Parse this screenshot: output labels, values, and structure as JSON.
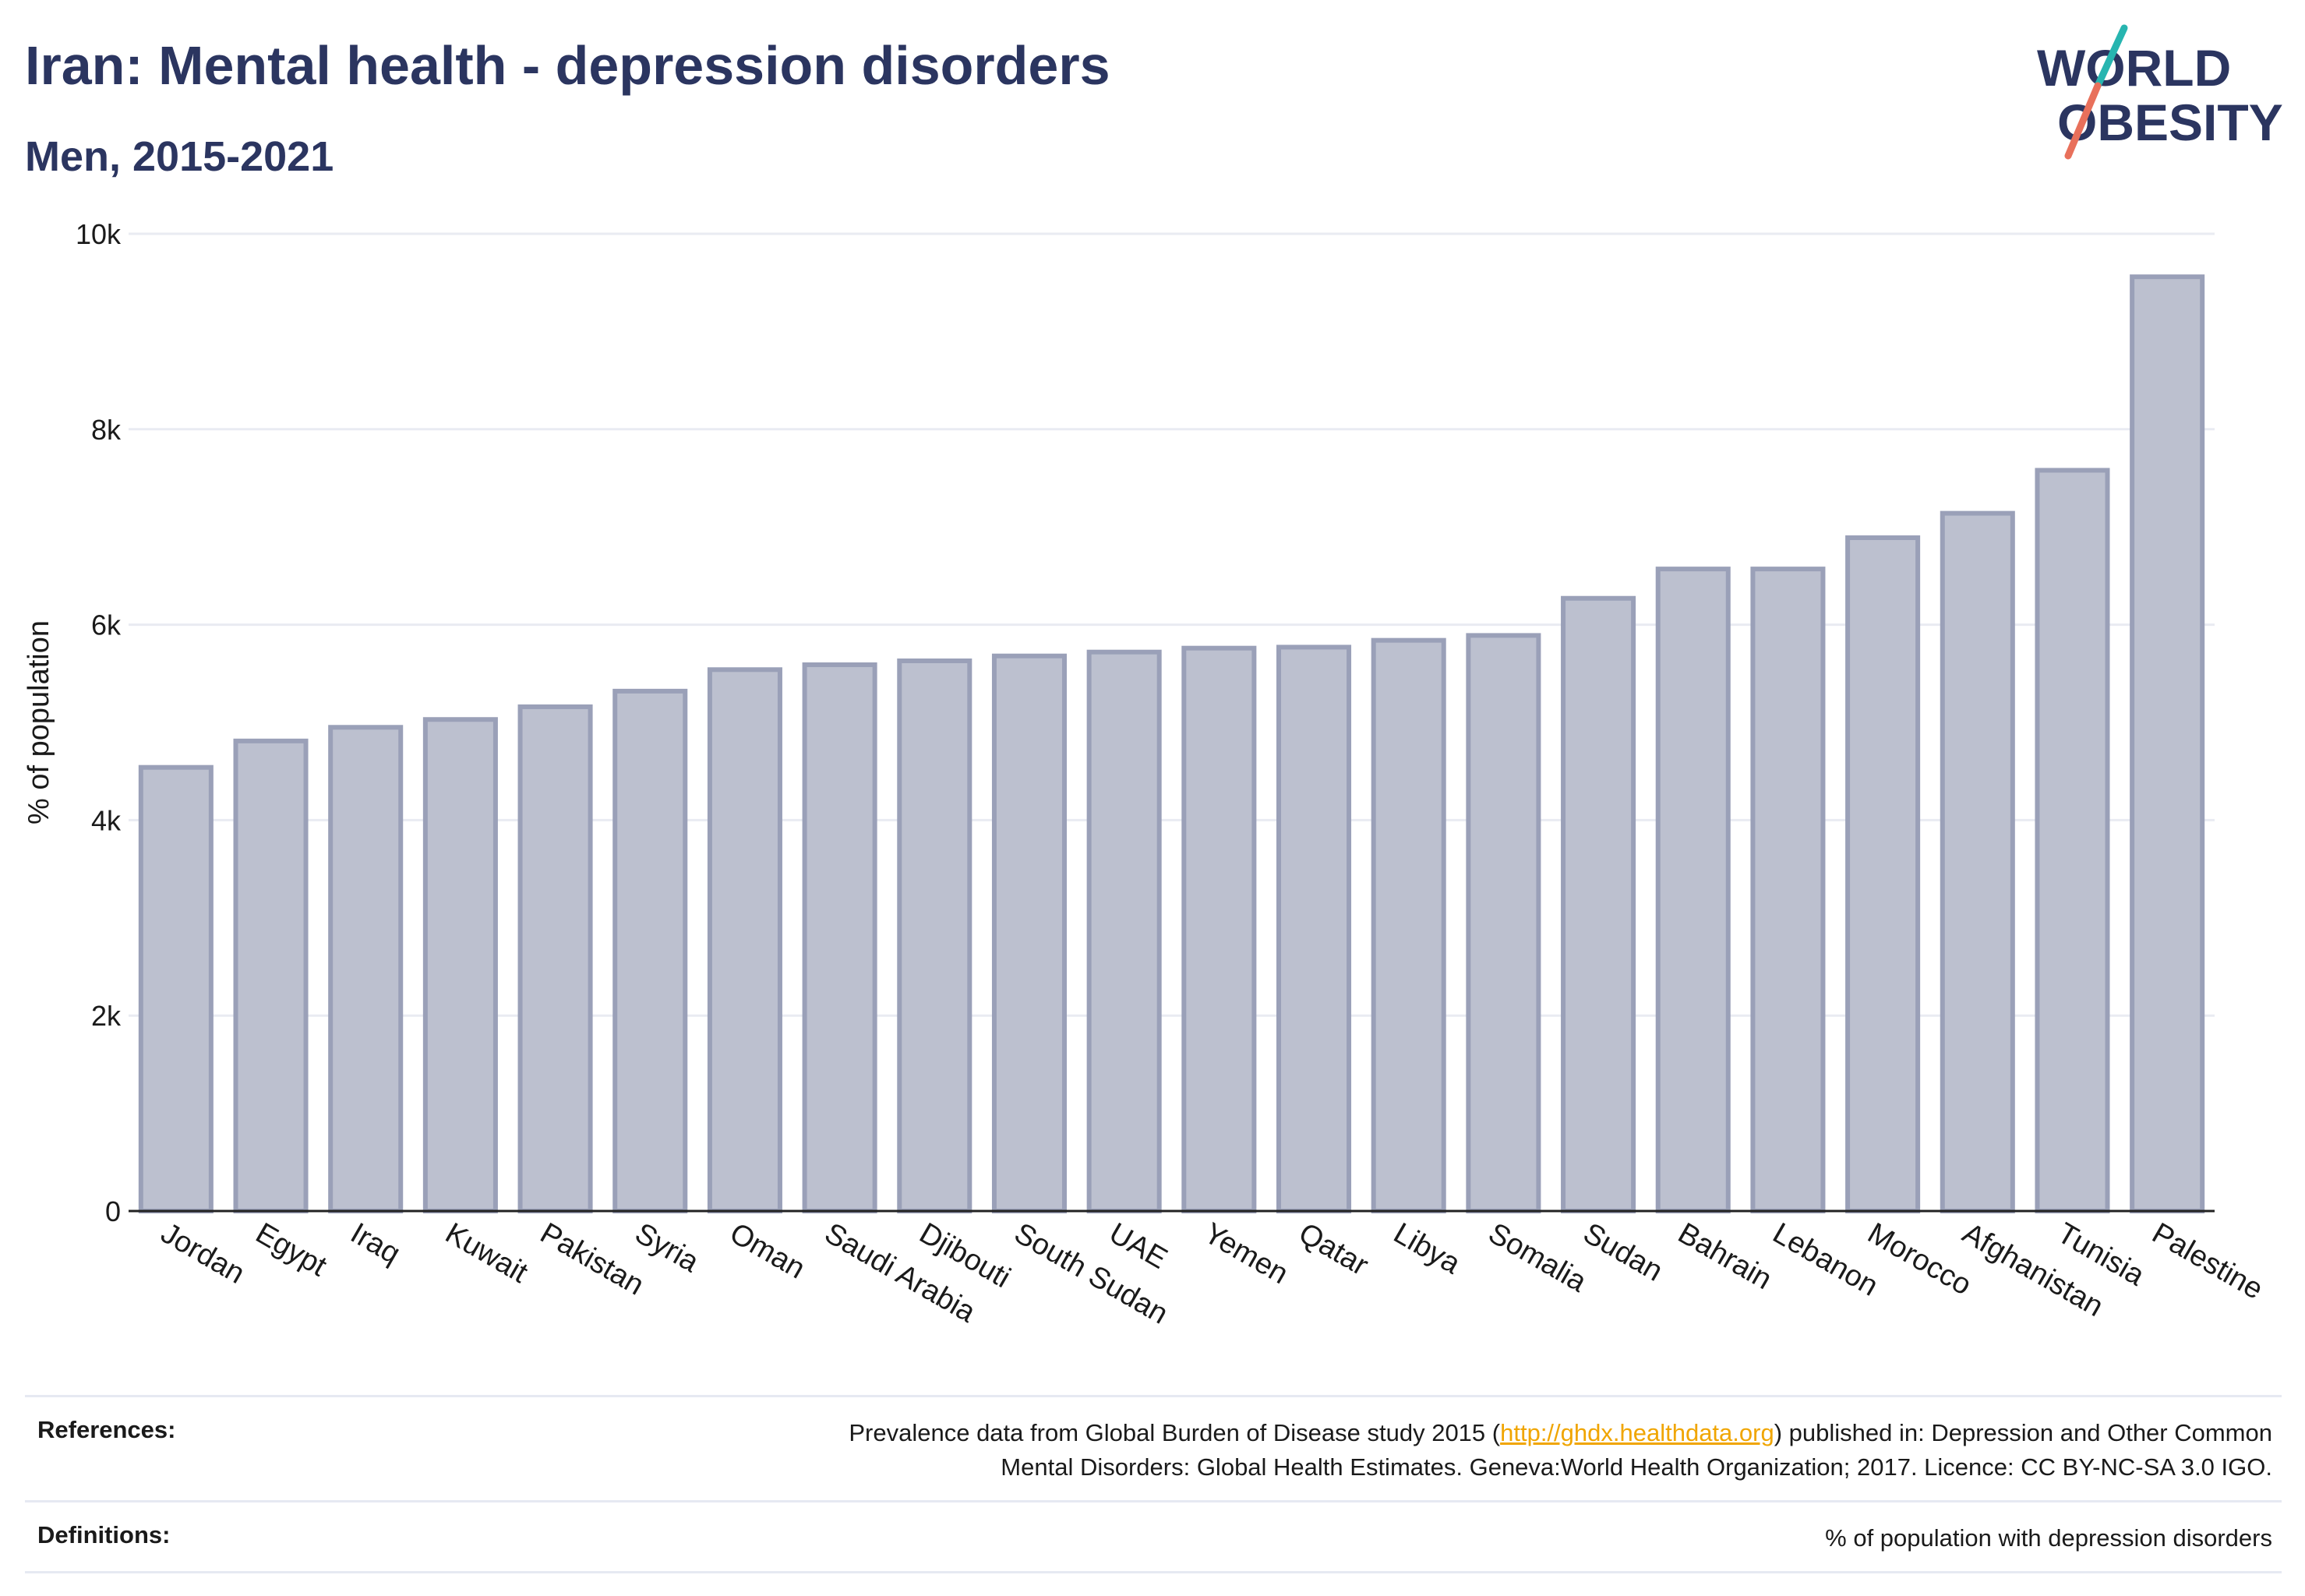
{
  "header": {
    "title": "Iran: Mental health - depression disorders",
    "subtitle": "Men, 2015-2021"
  },
  "logo": {
    "line1": "W",
    "line1b": "RLD",
    "line2": "BESITY"
  },
  "colors": {
    "title": "#2b3560",
    "bar_fill": "#bcc0cf",
    "bar_stroke": "#9aa0b8",
    "grid": "#e9ebf2",
    "link": "#f0a500",
    "logo_teal": "#27b5b0",
    "logo_coral": "#e8705b"
  },
  "chart_data": {
    "type": "bar",
    "title": "Iran: Mental health - depression disorders",
    "subtitle": "Men, 2015-2021",
    "xlabel": "",
    "ylabel": "% of population",
    "ylim": [
      0,
      10000
    ],
    "yticks": [
      0,
      2000,
      4000,
      6000,
      8000,
      10000
    ],
    "ytick_labels": [
      "0",
      "2k",
      "4k",
      "6k",
      "8k",
      "10k"
    ],
    "grid": true,
    "categories": [
      "Jordan",
      "Egypt",
      "Iraq",
      "Kuwait",
      "Pakistan",
      "Syria",
      "Oman",
      "Saudi Arabia",
      "Djibouti",
      "South Sudan",
      "UAE",
      "Yemen",
      "Qatar",
      "Libya",
      "Somalia",
      "Sudan",
      "Bahrain",
      "Lebanon",
      "Morocco",
      "Afghanistan",
      "Tunisia",
      "Palestine"
    ],
    "values": [
      4540,
      4810,
      4950,
      5030,
      5160,
      5320,
      5540,
      5590,
      5630,
      5680,
      5720,
      5760,
      5770,
      5840,
      5890,
      6270,
      6570,
      6570,
      6890,
      7140,
      7580,
      9560
    ]
  },
  "footer": {
    "references_label": "References:",
    "references_pre": "Prevalence data from Global Burden of Disease study 2015 (",
    "references_link": "http://ghdx.healthdata.org",
    "references_post": ") published in: Depression and Other Common",
    "references_line2": "Mental Disorders: Global Health Estimates. Geneva:World Health Organization; 2017. Licence: CC BY-NC-SA 3.0 IGO.",
    "definitions_label": "Definitions:",
    "definitions_text": "% of population with depression disorders"
  }
}
